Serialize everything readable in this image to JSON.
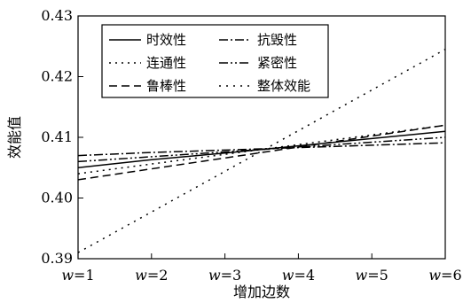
{
  "chart_data": {
    "type": "line",
    "title": "",
    "xlabel": "增加边数",
    "ylabel": "效能值",
    "categories": [
      "w=1",
      "w=2",
      "w=3",
      "w=4",
      "w=5",
      "w=6"
    ],
    "x": [
      1,
      2,
      3,
      4,
      5,
      6
    ],
    "xlim": [
      1,
      6
    ],
    "ylim": [
      0.39,
      0.43
    ],
    "yticks": [
      "0.39",
      "0.40",
      "0.41",
      "0.42",
      "0.43"
    ],
    "grid": false,
    "legend_position": "top-left",
    "series": [
      {
        "name": "时效性",
        "style": "solid",
        "y": [
          0.405,
          0.4063,
          0.4074,
          0.4086,
          0.4098,
          0.411
        ]
      },
      {
        "name": "抗毁性",
        "style": "dash-dot",
        "y": [
          0.407,
          0.4075,
          0.4079,
          0.4083,
          0.4087,
          0.4091
        ]
      },
      {
        "name": "连通性",
        "style": "dotted",
        "y": [
          0.404,
          0.4056,
          0.4072,
          0.4088,
          0.4104,
          0.412
        ]
      },
      {
        "name": "紧密性",
        "style": "dash-dot-dot",
        "y": [
          0.406,
          0.4068,
          0.4076,
          0.4084,
          0.4092,
          0.41
        ]
      },
      {
        "name": "鲁棒性",
        "style": "long-dash",
        "y": [
          0.403,
          0.4048,
          0.4066,
          0.4084,
          0.4102,
          0.412
        ]
      },
      {
        "name": "整体效能",
        "style": "sparse-dotted",
        "y": [
          0.391,
          0.3977,
          0.4044,
          0.4111,
          0.4178,
          0.4245
        ]
      }
    ]
  }
}
